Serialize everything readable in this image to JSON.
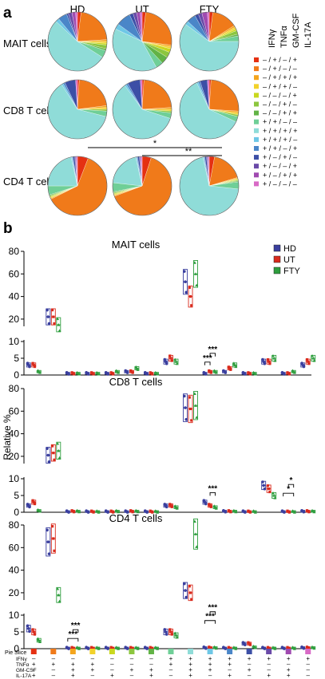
{
  "panels": {
    "a": "a",
    "b": "b"
  },
  "pie_figure": {
    "conditions": [
      "HD",
      "UT",
      "FTY"
    ],
    "cell_types": [
      "MAIT cells",
      "CD8 T cells",
      "CD4 T cells"
    ],
    "legend_headers": [
      "IFNγ",
      "TNFα",
      "GM-CSF",
      "IL-17A"
    ],
    "legend_items": [
      {
        "label": "– / + / – / +",
        "color": "#e53012"
      },
      {
        "label": "– / + / – / –",
        "color": "#f07a1a"
      },
      {
        "label": "– / + / + / +",
        "color": "#f4a51d"
      },
      {
        "label": "– / + / + / –",
        "color": "#f2d22a"
      },
      {
        "label": "– / – / – / +",
        "color": "#c9d81f"
      },
      {
        "label": "– / – / + / –",
        "color": "#8cc63f"
      },
      {
        "label": "– / – / + / +",
        "color": "#62b346"
      },
      {
        "label": "+ / + / – / –",
        "color": "#6fcf97"
      },
      {
        "label": "+ / + / + / +",
        "color": "#8fdcd8"
      },
      {
        "label": "+ / + / + / –",
        "color": "#6ec7e6"
      },
      {
        "label": "+ / + / – / +",
        "color": "#4a86c8"
      },
      {
        "label": "+ / – / + / –",
        "color": "#3c4fa6"
      },
      {
        "label": "+ / – / – / +",
        "color": "#6a4aa8"
      },
      {
        "label": "+ / – / + / +",
        "color": "#a04ab0"
      },
      {
        "label": "+ / – / – / –",
        "color": "#d86ac6"
      }
    ],
    "significance": [
      {
        "label": "*",
        "between": [
          "HD",
          "FTY"
        ],
        "row": "CD4 T cells"
      },
      {
        "label": "**",
        "between": [
          "UT",
          "FTY"
        ],
        "row": "CD4 T cells"
      }
    ]
  },
  "chart_data": [
    {
      "type": "pie",
      "title": "MAIT cells",
      "categories": [
        "– / + / – / +",
        "– / + / – / –",
        "– / + / + / +",
        "– / + / + / –",
        "– / – / – / +",
        "– / – / + / –",
        "– / – / + / +",
        "+ / + / – / –",
        "+ / + / + / +",
        "+ / + / + / –",
        "+ / + / – / +",
        "+ / – / + / –",
        "+ / – / – / +",
        "+ / – / + / +",
        "+ / – / – / –"
      ],
      "series": [
        {
          "name": "HD",
          "values": [
            2,
            22,
            1,
            1,
            1,
            2,
            1,
            4,
            53,
            2,
            5,
            1,
            2,
            2,
            1
          ]
        },
        {
          "name": "UT",
          "values": [
            2,
            25,
            1,
            1,
            2,
            3,
            4,
            4,
            40,
            3,
            8,
            2,
            2,
            2,
            1
          ]
        },
        {
          "name": "FTY",
          "values": [
            2,
            14,
            1,
            1,
            1,
            2,
            1,
            3,
            60,
            2,
            5,
            2,
            2,
            3,
            1
          ]
        }
      ]
    },
    {
      "type": "pie",
      "title": "CD8 T cells",
      "categories": [
        "– / + / – / +",
        "– / + / – / –",
        "– / + / + / +",
        "– / + / + / –",
        "– / – / – / +",
        "– / – / + / –",
        "– / – / + / +",
        "+ / + / – / –",
        "+ / + / + / +",
        "+ / + / + / –",
        "+ / + / – / +",
        "+ / – / + / –",
        "+ / – / – / +",
        "+ / – / + / +",
        "+ / – / – / –"
      ],
      "series": [
        {
          "name": "HD",
          "values": [
            1,
            22,
            1,
            1,
            0,
            1,
            0,
            3,
            62,
            1,
            1,
            6,
            0,
            0,
            1
          ]
        },
        {
          "name": "UT",
          "values": [
            1,
            23,
            1,
            1,
            0,
            1,
            0,
            3,
            60,
            1,
            1,
            7,
            0,
            0,
            1
          ]
        },
        {
          "name": "FTY",
          "values": [
            1,
            25,
            1,
            1,
            0,
            1,
            0,
            3,
            61,
            1,
            1,
            4,
            0,
            0,
            1
          ]
        }
      ]
    },
    {
      "type": "pie",
      "title": "CD4 T cells",
      "categories": [
        "– / + / – / +",
        "– / + / – / –",
        "– / + / + / +",
        "– / + / + / –",
        "– / – / – / +",
        "– / – / + / –",
        "– / – / + / +",
        "+ / + / – / –",
        "+ / + / + / +",
        "+ / + / + / –",
        "+ / + / – / +",
        "+ / – / + / –",
        "+ / – / – / +",
        "+ / – / + / +",
        "+ / – / – / –"
      ],
      "series": [
        {
          "name": "HD",
          "values": [
            6,
            63,
            0.5,
            0.5,
            0.5,
            0.5,
            0.5,
            5,
            22,
            0.5,
            0.5,
            1,
            0.5,
            0.5,
            0.5
          ]
        },
        {
          "name": "UT",
          "values": [
            5,
            65,
            0.5,
            0.5,
            0.5,
            0.5,
            0.5,
            5,
            20,
            0.5,
            0.5,
            1,
            0.5,
            0.5,
            0.5
          ]
        },
        {
          "name": "FTY",
          "values": [
            3,
            18,
            0.5,
            0.5,
            0.5,
            0.5,
            0.5,
            4,
            72,
            0.5,
            0.5,
            1,
            0.5,
            0.5,
            0.5
          ]
        }
      ]
    },
    {
      "type": "bar",
      "title": "MAIT cells",
      "ylabel": "Relative %",
      "yticks": [
        0,
        5,
        10,
        20,
        40,
        60,
        80
      ],
      "axis_break": [
        10,
        15
      ],
      "series_names": [
        "HD",
        "UT",
        "FTY"
      ],
      "series_colors": [
        "#3a3f9e",
        "#d92a1c",
        "#2e9e3e"
      ],
      "values": [
        [
          3,
          3,
          1
        ],
        [
          22,
          22,
          15
        ],
        [
          0.5,
          0.5,
          0.5
        ],
        [
          0.5,
          0.5,
          0.5
        ],
        [
          0.5,
          0.5,
          1
        ],
        [
          1,
          1,
          2
        ],
        [
          0.5,
          0.5,
          0.5
        ],
        [
          4,
          5,
          4
        ],
        [
          53,
          40,
          60
        ],
        [
          0.5,
          1,
          1
        ],
        [
          1,
          2,
          3
        ],
        [
          0.5,
          0.5,
          0.5
        ],
        [
          4,
          4,
          5
        ],
        [
          0.5,
          0.5,
          1
        ],
        [
          3,
          4,
          5
        ]
      ],
      "significance": [
        {
          "label": "***",
          "category": 9,
          "between": [
            "HD",
            "UT"
          ]
        },
        {
          "label": "***",
          "category": 9,
          "between": [
            "UT",
            "FTY"
          ]
        }
      ]
    },
    {
      "type": "bar",
      "title": "CD8 T cells",
      "ylabel": "Relative %",
      "yticks": [
        0,
        5,
        10,
        20,
        40,
        60,
        80
      ],
      "axis_break": [
        10,
        15
      ],
      "series_names": [
        "HD",
        "UT",
        "FTY"
      ],
      "series_colors": [
        "#3a3f9e",
        "#d92a1c",
        "#2e9e3e"
      ],
      "values": [
        [
          2,
          3,
          0.5
        ],
        [
          21,
          23,
          25
        ],
        [
          0.2,
          0.3,
          0.3
        ],
        [
          0.2,
          0.2,
          0.2
        ],
        [
          0.2,
          0.2,
          0.3
        ],
        [
          0.2,
          0.3,
          0.3
        ],
        [
          0.2,
          0.2,
          0.2
        ],
        [
          2,
          2,
          1.5
        ],
        [
          63,
          62,
          65
        ],
        [
          3,
          2,
          1.5
        ],
        [
          0.3,
          0.3,
          0.3
        ],
        [
          0.2,
          0.2,
          0.2
        ],
        [
          8,
          7,
          5
        ],
        [
          0.2,
          0.2,
          0.2
        ],
        [
          0.3,
          0.3,
          0.3
        ]
      ],
      "significance": [
        {
          "label": "***",
          "category": 9,
          "between": [
            "UT",
            "FTY"
          ]
        },
        {
          "label": "*",
          "category": 13,
          "between": [
            "HD",
            "FTY"
          ]
        },
        {
          "label": "*",
          "category": 13,
          "between": [
            "UT",
            "FTY"
          ]
        }
      ]
    },
    {
      "type": "bar",
      "title": "CD4 T cells",
      "ylabel": "Relative %",
      "yticks": [
        0,
        5,
        10,
        20,
        40,
        60,
        80
      ],
      "axis_break": [
        10,
        15
      ],
      "series_names": [
        "HD",
        "UT",
        "FTY"
      ],
      "series_colors": [
        "#3a3f9e",
        "#d92a1c",
        "#2e9e3e"
      ],
      "values": [
        [
          6,
          5,
          2.5
        ],
        [
          65,
          68,
          18
        ],
        [
          0.2,
          0.2,
          0.2
        ],
        [
          0.2,
          0.2,
          0.2
        ],
        [
          0.2,
          0.2,
          0.2
        ],
        [
          0.2,
          0.2,
          0.2
        ],
        [
          0.2,
          0.2,
          0.2
        ],
        [
          5,
          5,
          4
        ],
        [
          22,
          20,
          72
        ],
        [
          0.3,
          0.3,
          0.3
        ],
        [
          0.2,
          0.2,
          0.2
        ],
        [
          1.5,
          1.5,
          0.5
        ],
        [
          0.2,
          0.2,
          0.2
        ],
        [
          0.2,
          0.2,
          0.2
        ],
        [
          0.3,
          0.3,
          0.3
        ]
      ],
      "significance": [
        {
          "label": "***",
          "category": 2,
          "between": [
            "HD",
            "FTY"
          ]
        },
        {
          "label": "***",
          "category": 2,
          "between": [
            "UT",
            "FTY"
          ]
        },
        {
          "label": "***",
          "category": 9,
          "between": [
            "HD",
            "FTY"
          ]
        },
        {
          "label": "***",
          "category": 9,
          "between": [
            "UT",
            "FTY"
          ]
        }
      ]
    }
  ],
  "bar_legend": [
    {
      "label": "HD",
      "color": "#3a3f9e"
    },
    {
      "label": "UT",
      "color": "#d92a1c"
    },
    {
      "label": "FTY",
      "color": "#2e9e3e"
    }
  ],
  "bar_ylabel": "Relative %",
  "bar_yticks": [
    "80",
    "60",
    "40",
    "20",
    "10",
    "5",
    "0"
  ],
  "category_table": {
    "row_labels": [
      "Pie Slice",
      "IFNγ",
      "TNFα",
      "GM-CSF",
      "IL-17A"
    ],
    "slice_colors": [
      "#e53012",
      "#f07a1a",
      "#f4a51d",
      "#f2d22a",
      "#c9d81f",
      "#8cc63f",
      "#62b346",
      "#6fcf97",
      "#8fdcd8",
      "#6ec7e6",
      "#4a86c8",
      "#3c4fa6",
      "#6a4aa8",
      "#a04ab0",
      "#d86ac6"
    ],
    "ifng": [
      "–",
      "–",
      "–",
      "–",
      "–",
      "–",
      "–",
      "+",
      "+",
      "+",
      "+",
      "+",
      "+",
      "+",
      "+"
    ],
    "tnfa": [
      "+",
      "+",
      "+",
      "+",
      "–",
      "–",
      "–",
      "+",
      "+",
      "+",
      "+",
      "–",
      "–",
      "–",
      "–"
    ],
    "gmcsf": [
      "–",
      "–",
      "+",
      "+",
      "–",
      "+",
      "+",
      "–",
      "+",
      "+",
      "–",
      "+",
      "–",
      "+",
      "–"
    ],
    "il17a": [
      "+",
      "–",
      "+",
      "–",
      "+",
      "–",
      "+",
      "–",
      "+",
      "–",
      "+",
      "–",
      "+",
      "+",
      "–"
    ]
  }
}
